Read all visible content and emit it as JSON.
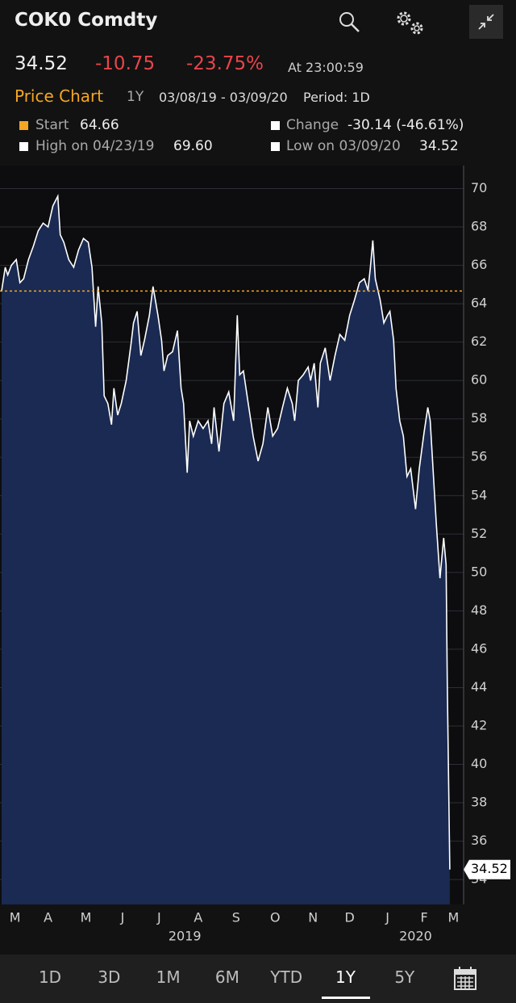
{
  "header": {
    "ticker": "COK0 Comdty",
    "price": "34.52",
    "change": "-10.75",
    "change_pct": "-23.75%",
    "time": "At 23:00:59"
  },
  "toolbar": {
    "title": "Price Chart",
    "range": "1Y",
    "dates": "03/08/19 - 03/09/20",
    "period": "Period: 1D"
  },
  "stats": {
    "start_label": "Start",
    "start_value": "64.66",
    "change_label": "Change",
    "change_value": "-30.14 (-46.61%)",
    "high_label": "High on 04/23/19",
    "high_value": "69.60",
    "low_label": "Low on 03/09/20",
    "low_value": "34.52"
  },
  "tabs": [
    "1D",
    "3D",
    "1M",
    "6M",
    "YTD",
    "1Y",
    "5Y"
  ],
  "chart_data": {
    "type": "area",
    "x": [
      0,
      3,
      5,
      8,
      12,
      15,
      18,
      22,
      26,
      30,
      34,
      38,
      42,
      46,
      48,
      51,
      55,
      59,
      63,
      67,
      71,
      74,
      77,
      79,
      82,
      84,
      87,
      90,
      92,
      95,
      98,
      102,
      106,
      108,
      111,
      114,
      117,
      121,
      124,
      128,
      131,
      133,
      136,
      140,
      144,
      147,
      149,
      152,
      154,
      157,
      161,
      165,
      169,
      172,
      174,
      178,
      182,
      186,
      190,
      193,
      195,
      198,
      202,
      206,
      210,
      214,
      218,
      222,
      226,
      230,
      234,
      238,
      240,
      243,
      247,
      251,
      253,
      256,
      259,
      261,
      265,
      269,
      273,
      277,
      281,
      285,
      289,
      293,
      297,
      300,
      302,
      304,
      306,
      310,
      313,
      316,
      318,
      321,
      323,
      326,
      329,
      332,
      335,
      339,
      342,
      346,
      349,
      351,
      354,
      356,
      359,
      362,
      364,
      365,
      367
    ],
    "series": [
      {
        "color": "#ffffff",
        "fill": "#1a2a52",
        "values": [
          64.66,
          65.9,
          65.5,
          66.0,
          66.3,
          65.1,
          65.3,
          66.3,
          67.0,
          67.8,
          68.2,
          68.0,
          69.1,
          69.6,
          67.6,
          67.2,
          66.3,
          65.9,
          66.8,
          67.4,
          67.2,
          65.9,
          62.8,
          64.9,
          63.0,
          59.2,
          58.8,
          57.7,
          59.6,
          58.2,
          58.8,
          60.0,
          61.9,
          63.0,
          63.6,
          61.3,
          62.1,
          63.4,
          64.9,
          63.4,
          62.1,
          60.5,
          61.3,
          61.5,
          62.6,
          59.6,
          58.8,
          55.2,
          57.9,
          57.1,
          57.9,
          57.5,
          57.9,
          56.7,
          58.6,
          56.3,
          58.8,
          59.4,
          57.9,
          63.4,
          60.3,
          60.5,
          58.8,
          57.1,
          55.8,
          56.7,
          58.6,
          57.1,
          57.5,
          58.6,
          59.6,
          58.8,
          57.9,
          60.0,
          60.3,
          60.7,
          60.0,
          60.9,
          58.6,
          60.9,
          61.7,
          60.0,
          61.3,
          62.4,
          62.1,
          63.4,
          64.2,
          65.1,
          65.3,
          64.7,
          65.9,
          67.3,
          65.3,
          64.2,
          63.0,
          63.4,
          63.6,
          62.1,
          59.6,
          57.9,
          57.1,
          55.0,
          55.4,
          53.3,
          55.4,
          57.3,
          58.6,
          57.9,
          54.6,
          52.5,
          49.7,
          51.8,
          50.4,
          44.1,
          34.52
        ]
      }
    ],
    "reference_value": 64.66,
    "reference_color": "#f5a623",
    "xlim": [
      0,
      377
    ],
    "ylim": [
      32.7,
      71.2
    ],
    "yticks": [
      34,
      36,
      38,
      40,
      42,
      44,
      46,
      48,
      50,
      52,
      54,
      56,
      58,
      60,
      62,
      64,
      66,
      68,
      70
    ],
    "xticks": [
      {
        "value": 11,
        "label": "M"
      },
      {
        "value": 38,
        "label": "A"
      },
      {
        "value": 69,
        "label": "M"
      },
      {
        "value": 99,
        "label": "J"
      },
      {
        "value": 129,
        "label": "J"
      },
      {
        "value": 161,
        "label": "A"
      },
      {
        "value": 192,
        "label": "S"
      },
      {
        "value": 224,
        "label": "O"
      },
      {
        "value": 255,
        "label": "N"
      },
      {
        "value": 285,
        "label": "D"
      },
      {
        "value": 316,
        "label": "J"
      },
      {
        "value": 346,
        "label": "F"
      },
      {
        "value": 370,
        "label": "M"
      }
    ],
    "year_ticks": [
      {
        "value": 150,
        "label": "2019"
      },
      {
        "value": 339,
        "label": "2020"
      }
    ],
    "grid": true
  }
}
